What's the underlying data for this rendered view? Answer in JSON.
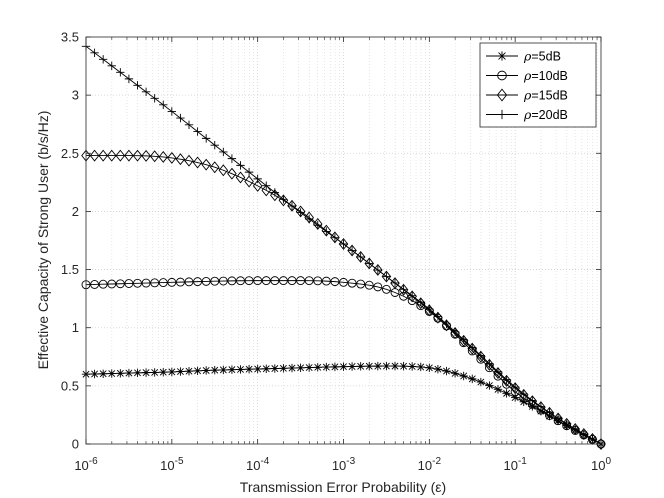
{
  "chart_data": {
    "type": "line",
    "title": "",
    "xlabel": "Transmission Error Probability (ε)",
    "ylabel": "Effective Capacity of Strong User (b/s/Hz)",
    "xscale": "log",
    "xlim": [
      1e-06,
      1
    ],
    "ylim": [
      0,
      3.5
    ],
    "grid": true,
    "legend_position": "top-right",
    "x_ticks": [
      {
        "base": "10",
        "exp": "-6"
      },
      {
        "base": "10",
        "exp": "-5"
      },
      {
        "base": "10",
        "exp": "-4"
      },
      {
        "base": "10",
        "exp": "-3"
      },
      {
        "base": "10",
        "exp": "-2"
      },
      {
        "base": "10",
        "exp": "-1"
      },
      {
        "base": "10",
        "exp": "0"
      }
    ],
    "y_ticks": [
      "0",
      "0.5",
      "1",
      "1.5",
      "2",
      "2.5",
      "3",
      "3.5"
    ],
    "x_log10": [
      -6,
      -5.5,
      -5,
      -4.5,
      -4,
      -3.5,
      -3,
      -2.5,
      -2,
      -1.5,
      -1,
      -0.5,
      0
    ],
    "series": [
      {
        "name_symbol": "ρ",
        "name_rest": "=5dB",
        "marker": "star",
        "values": [
          0.6,
          0.61,
          0.62,
          0.635,
          0.645,
          0.655,
          0.665,
          0.67,
          0.655,
          0.56,
          0.4,
          0.2,
          0.0
        ]
      },
      {
        "name_symbol": "ρ",
        "name_rest": "=10dB",
        "marker": "circle",
        "values": [
          1.37,
          1.38,
          1.39,
          1.4,
          1.405,
          1.405,
          1.39,
          1.33,
          1.14,
          0.8,
          0.45,
          0.2,
          0.0
        ]
      },
      {
        "name_symbol": "ρ",
        "name_rest": "=15dB",
        "marker": "diamond",
        "values": [
          2.48,
          2.48,
          2.46,
          2.38,
          2.22,
          2.0,
          1.72,
          1.44,
          1.15,
          0.82,
          0.48,
          0.22,
          0.0
        ]
      },
      {
        "name_symbol": "ρ",
        "name_rest": "=20dB",
        "marker": "plus",
        "values": [
          3.42,
          3.14,
          2.86,
          2.57,
          2.28,
          1.99,
          1.72,
          1.44,
          1.16,
          0.83,
          0.49,
          0.22,
          0.0
        ]
      }
    ]
  }
}
